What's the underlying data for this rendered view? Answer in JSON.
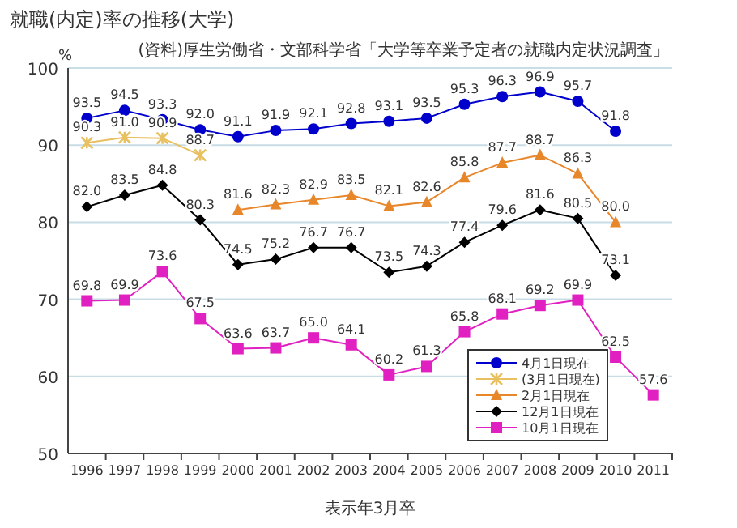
{
  "chart_data": {
    "type": "line",
    "title": "就職(内定)率の推移(大学)",
    "annotations": [
      "(資料)厚生労働省・文部科学省「大学等卒業予定者の就職内定状況調査」"
    ],
    "xlabel": "表示年3月卒",
    "ylabel": "%",
    "categories": [
      "1996",
      "1997",
      "1998",
      "1999",
      "2000",
      "2001",
      "2002",
      "2003",
      "2004",
      "2005",
      "2006",
      "2007",
      "2008",
      "2009",
      "2010",
      "2011"
    ],
    "series": [
      {
        "name": "4月1日現在",
        "color": "#0000cc",
        "marker": "circle",
        "values": [
          93.5,
          94.5,
          93.3,
          92.0,
          91.1,
          91.9,
          92.1,
          92.8,
          93.1,
          93.5,
          95.3,
          96.3,
          96.9,
          95.7,
          91.8,
          null
        ],
        "value_labels": [
          "93.5",
          "94.5",
          "93.3",
          "92.0",
          "91.1",
          "91.9",
          "92.1",
          "92.8",
          "93.1",
          "93.5",
          "95.3",
          "96.3",
          "96.9",
          "95.7",
          "91.8",
          null
        ]
      },
      {
        "name": "(3月1日現在)",
        "color": "#e8c060",
        "marker": "cross",
        "values": [
          90.3,
          91.0,
          90.9,
          88.7,
          null,
          null,
          null,
          null,
          null,
          null,
          null,
          null,
          null,
          null,
          null,
          null
        ],
        "value_labels": [
          "90.3",
          "91.0",
          "90.9",
          "88.7",
          null,
          null,
          null,
          null,
          null,
          null,
          null,
          null,
          null,
          null,
          null,
          null
        ]
      },
      {
        "name": "2月1日現在",
        "color": "#e8862a",
        "marker": "triangle",
        "values": [
          null,
          null,
          null,
          null,
          81.6,
          82.3,
          82.9,
          83.5,
          82.1,
          82.6,
          85.8,
          87.7,
          88.7,
          86.3,
          80.0,
          null
        ],
        "value_labels": [
          null,
          null,
          null,
          null,
          "81.6",
          "82.3",
          "82.9",
          "83.5",
          "82.1",
          "82.6",
          "85.8",
          "87.7",
          "88.7",
          "86.3",
          "80.0",
          null
        ]
      },
      {
        "name": "12月1日現在",
        "color": "#000000",
        "marker": "diamond",
        "values": [
          82.0,
          83.5,
          84.8,
          80.3,
          74.5,
          75.2,
          76.7,
          76.7,
          73.5,
          74.3,
          77.4,
          79.6,
          81.6,
          80.5,
          73.1,
          null
        ],
        "value_labels": [
          "82.0",
          "83.5",
          "84.8",
          "80.3",
          "74.5",
          "75.2",
          "76.7",
          "76.7",
          "73.5",
          "74.3",
          "77.4",
          "79.6",
          "81.6",
          "80.5",
          "73.1",
          null
        ]
      },
      {
        "name": "10月1日現在",
        "color": "#e020c0",
        "marker": "square",
        "values": [
          69.8,
          69.9,
          73.6,
          67.5,
          63.6,
          63.7,
          65.0,
          64.1,
          60.2,
          61.3,
          65.8,
          68.1,
          69.2,
          69.9,
          62.5,
          57.6
        ],
        "value_labels": [
          "69.8",
          "69.9",
          "73.6",
          "67.5",
          "63.6",
          "63.7",
          "65.0",
          "64.1",
          "60.2",
          "61.3",
          "65.8",
          "68.1",
          "69.2",
          "69.9",
          "62.5",
          "57.6"
        ]
      }
    ],
    "ylim": [
      50,
      100
    ],
    "yticks": [
      50,
      60,
      70,
      80,
      90,
      100
    ],
    "grid": "y",
    "legend": "bottom right",
    "line_style": "solid"
  }
}
